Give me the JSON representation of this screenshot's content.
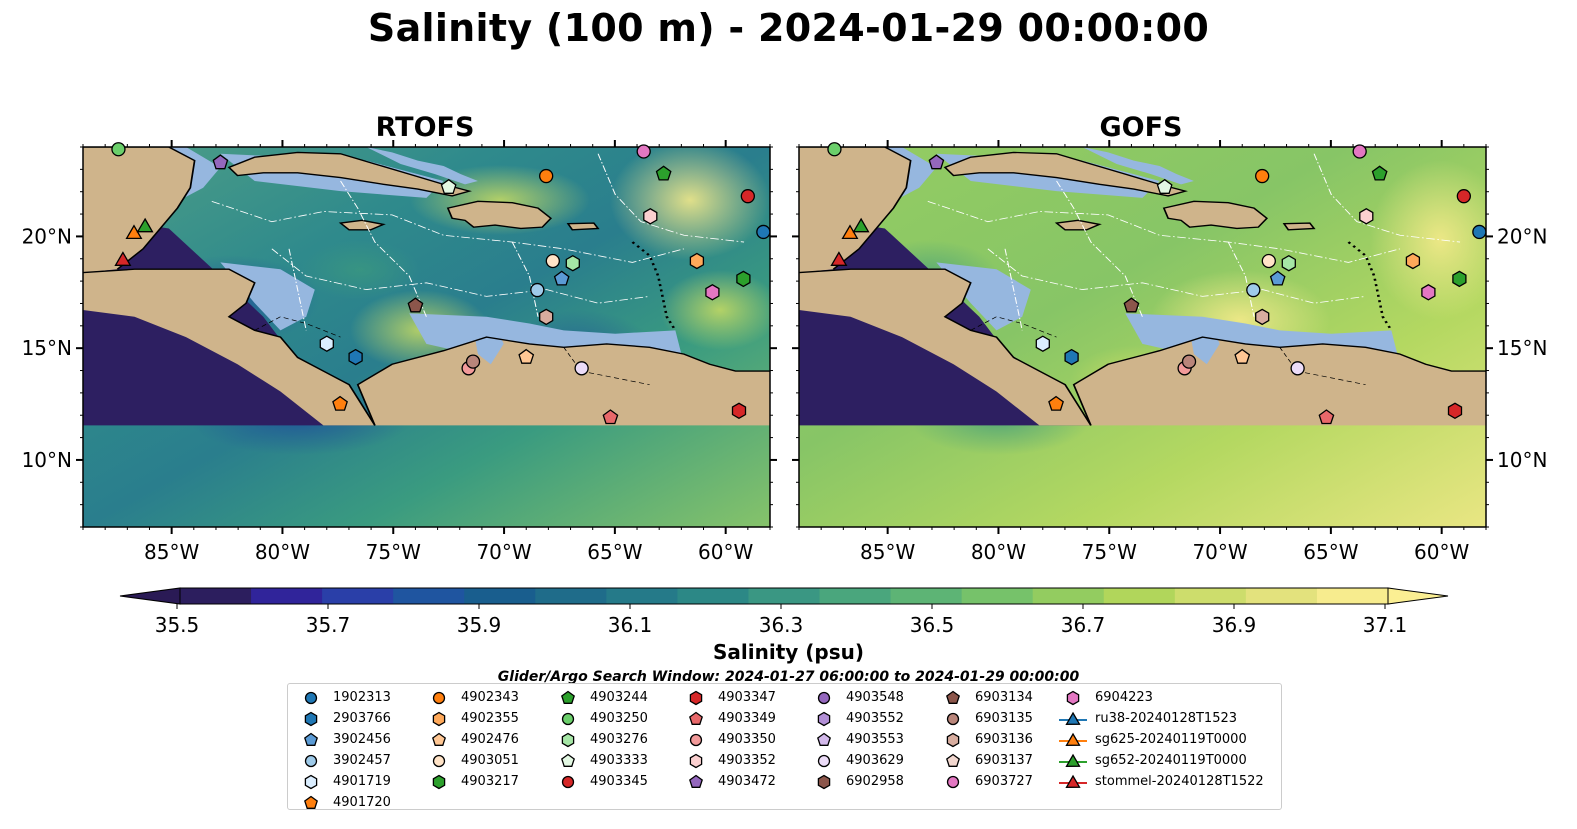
{
  "title": "Salinity (100 m) - 2024-01-29 00:00:00",
  "panels": [
    {
      "title": "RTOFS"
    },
    {
      "title": "GOFS"
    }
  ],
  "axes": {
    "lon_ticks": [
      "85°W",
      "80°W",
      "75°W",
      "70°W",
      "65°W",
      "60°W"
    ],
    "lat_ticks": [
      "20°N",
      "15°N",
      "10°N"
    ],
    "lon_values": [
      -85,
      -80,
      -75,
      -70,
      -65,
      -60
    ],
    "lat_values": [
      20,
      15,
      10
    ],
    "lon_range": [
      -89,
      -58
    ],
    "lat_range": [
      7,
      24
    ]
  },
  "colorbar": {
    "label": "Salinity (psu)",
    "tick_labels": [
      "35.5",
      "35.7",
      "35.9",
      "36.1",
      "36.3",
      "36.5",
      "36.7",
      "36.9",
      "37.1"
    ],
    "range": [
      35.5,
      37.1
    ],
    "extend": "both",
    "colormap": [
      "#2c1e5e",
      "#30249a",
      "#2a3fa8",
      "#1f55a0",
      "#195e8e",
      "#1f6c8a",
      "#257a89",
      "#2c8886",
      "#3a9783",
      "#4aa67d",
      "#5db475",
      "#76c26a",
      "#93cc60",
      "#b1d65b",
      "#cddd6c",
      "#e3e27d",
      "#f7ec8e"
    ],
    "extend_colors": {
      "low": "#2a1a55",
      "high": "#fbef93"
    }
  },
  "colors": {
    "land": "#cfb48b",
    "shelf": "#96b7df",
    "deep_pacific": "#2d1f61"
  },
  "search_window": "Glider/Argo Search Window: 2024-01-27 06:00:00 to 2024-01-29 00:00:00",
  "legend": {
    "columns": [
      [
        {
          "label": "1902313",
          "marker": "circle",
          "color": "#1f77b4"
        },
        {
          "label": "2903766",
          "marker": "hexagon",
          "color": "#1f77b4"
        },
        {
          "label": "3902456",
          "marker": "pentagon",
          "color": "#5b9bd5"
        },
        {
          "label": "3902457",
          "marker": "circle",
          "color": "#9ecae9"
        },
        {
          "label": "4901719",
          "marker": "hexagon",
          "color": "#dbeeff"
        },
        {
          "label": "4901720",
          "marker": "pentagon",
          "color": "#ff7f0e"
        }
      ],
      [
        {
          "label": "4902343",
          "marker": "circle",
          "color": "#ff7f0e"
        },
        {
          "label": "4902355",
          "marker": "hexagon",
          "color": "#ffa95a"
        },
        {
          "label": "4902476",
          "marker": "pentagon",
          "color": "#ffc794"
        },
        {
          "label": "4903051",
          "marker": "circle",
          "color": "#ffe3c7"
        },
        {
          "label": "4903217",
          "marker": "hexagon",
          "color": "#2ca02c"
        }
      ],
      [
        {
          "label": "4903244",
          "marker": "pentagon",
          "color": "#2ca02c"
        },
        {
          "label": "4903250",
          "marker": "circle",
          "color": "#6bcf6b"
        },
        {
          "label": "4903276",
          "marker": "hexagon",
          "color": "#a6e6a6"
        },
        {
          "label": "4903333",
          "marker": "pentagon",
          "color": "#e3f8e3"
        },
        {
          "label": "4903345",
          "marker": "circle",
          "color": "#d62728"
        }
      ],
      [
        {
          "label": "4903347",
          "marker": "hexagon",
          "color": "#d62728"
        },
        {
          "label": "4903349",
          "marker": "pentagon",
          "color": "#e8686a"
        },
        {
          "label": "4903350",
          "marker": "circle",
          "color": "#f29a9a"
        },
        {
          "label": "4903352",
          "marker": "hexagon",
          "color": "#fbd0d0"
        },
        {
          "label": "4903472",
          "marker": "pentagon",
          "color": "#9467bd"
        }
      ],
      [
        {
          "label": "4903548",
          "marker": "circle",
          "color": "#9467bd"
        },
        {
          "label": "4903552",
          "marker": "hexagon",
          "color": "#b28fd6"
        },
        {
          "label": "4903553",
          "marker": "pentagon",
          "color": "#d2b8ea"
        },
        {
          "label": "4903629",
          "marker": "circle",
          "color": "#ecdcf8"
        },
        {
          "label": "6902958",
          "marker": "hexagon",
          "color": "#8c564b"
        }
      ],
      [
        {
          "label": "6903134",
          "marker": "pentagon",
          "color": "#8c564b"
        },
        {
          "label": "6903135",
          "marker": "circle",
          "color": "#b9857a"
        },
        {
          "label": "6903136",
          "marker": "hexagon",
          "color": "#d8ad9f"
        },
        {
          "label": "6903137",
          "marker": "pentagon",
          "color": "#f2d7cf"
        },
        {
          "label": "6903727",
          "marker": "circle",
          "color": "#e377c2"
        }
      ],
      [
        {
          "label": "6904223",
          "marker": "hexagon",
          "color": "#e377c2"
        },
        {
          "label": "ru38-20240128T1523",
          "marker": "triangle-line",
          "color": "#1f77b4"
        },
        {
          "label": "sg625-20240119T0000",
          "marker": "triangle-line",
          "color": "#ff7f0e"
        },
        {
          "label": "sg652-20240119T0000",
          "marker": "triangle-line",
          "color": "#2ca02c"
        },
        {
          "label": "stommel-20240128T1522",
          "marker": "triangle-line",
          "color": "#d62728"
        }
      ]
    ]
  },
  "floats": [
    {
      "id": "1902313",
      "lon": -58.3,
      "lat": 20.2
    },
    {
      "id": "2903766",
      "lon": -76.7,
      "lat": 14.6
    },
    {
      "id": "3902456",
      "lon": -67.4,
      "lat": 18.1
    },
    {
      "id": "3902457",
      "lon": -68.5,
      "lat": 17.6
    },
    {
      "id": "4901719",
      "lon": -78.0,
      "lat": 15.2
    },
    {
      "id": "4901720",
      "lon": -77.4,
      "lat": 12.5
    },
    {
      "id": "4902343",
      "lon": -68.1,
      "lat": 22.7
    },
    {
      "id": "4902355",
      "lon": -61.3,
      "lat": 18.9
    },
    {
      "id": "4902476",
      "lon": -69.0,
      "lat": 14.6
    },
    {
      "id": "4903051",
      "lon": -67.8,
      "lat": 18.9
    },
    {
      "id": "4903217",
      "lon": -59.2,
      "lat": 18.1
    },
    {
      "id": "4903244",
      "lon": -62.8,
      "lat": 22.8
    },
    {
      "id": "4903250",
      "lon": -87.4,
      "lat": 23.9
    },
    {
      "id": "4903276",
      "lon": -66.9,
      "lat": 18.8
    },
    {
      "id": "4903333",
      "lon": -72.5,
      "lat": 22.2
    },
    {
      "id": "4903345",
      "lon": -59.0,
      "lat": 21.8
    },
    {
      "id": "4903347",
      "lon": -59.4,
      "lat": 12.2
    },
    {
      "id": "4903349",
      "lon": -65.2,
      "lat": 11.9
    },
    {
      "id": "4903350",
      "lon": -71.6,
      "lat": 14.1
    },
    {
      "id": "4903352",
      "lon": -63.4,
      "lat": 20.9
    },
    {
      "id": "4903472",
      "lon": -82.8,
      "lat": 23.3
    },
    {
      "id": "4903629",
      "lon": -66.5,
      "lat": 14.1
    },
    {
      "id": "6903134",
      "lon": -74.0,
      "lat": 16.9
    },
    {
      "id": "6903135",
      "lon": -71.4,
      "lat": 14.4
    },
    {
      "id": "6903136",
      "lon": -68.1,
      "lat": 16.4
    },
    {
      "id": "6904223",
      "lon": -60.6,
      "lat": 17.5
    },
    {
      "id": "6903727",
      "lon": -63.7,
      "lat": 23.8
    }
  ],
  "gliders": [
    {
      "id": "sg625-20240119T0000",
      "lon": -86.7,
      "lat": 20.1
    },
    {
      "id": "sg652-20240119T0000",
      "lon": -86.2,
      "lat": 20.4
    },
    {
      "id": "stommel-20240128T1522",
      "lon": -87.2,
      "lat": 18.9
    }
  ]
}
